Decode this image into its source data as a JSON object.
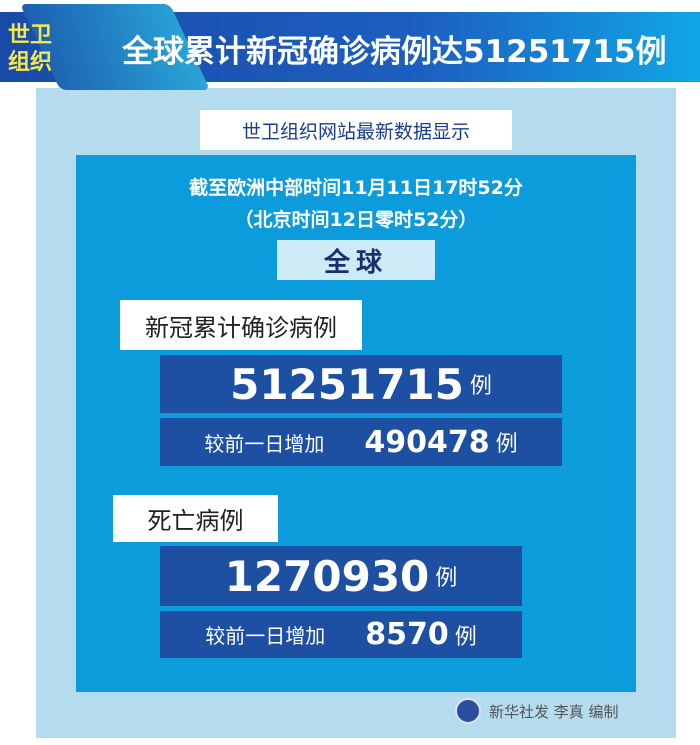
{
  "header": {
    "badge_line1": "世卫",
    "badge_line2": "组织",
    "title": "全球累计新冠确诊病例达51251715例"
  },
  "subtitle": "世卫组织网站最新数据显示",
  "date_line1": "截至欧洲中部时间11月11日17时52分",
  "date_line2": "（北京时间12日零时52分）",
  "region": "全球",
  "confirmed": {
    "label": "新冠累计确诊病例",
    "value": "51251715",
    "unit": "例",
    "increase_label": "较前一日增加",
    "increase_value": "490478",
    "increase_unit": "例"
  },
  "deaths": {
    "label": "死亡病例",
    "value": "1270930",
    "unit": "例",
    "increase_label": "较前一日增加",
    "increase_value": "8570",
    "increase_unit": "例"
  },
  "footer": {
    "credit": "新华社发 李真 编制",
    "icon": "xinhua-logo-icon"
  },
  "colors": {
    "banner": "#1a4aa8",
    "panel": "#b4dcee",
    "inner": "#0c9bdb",
    "number_box": "#1d4fa3",
    "badge_text": "#f2e94a"
  }
}
